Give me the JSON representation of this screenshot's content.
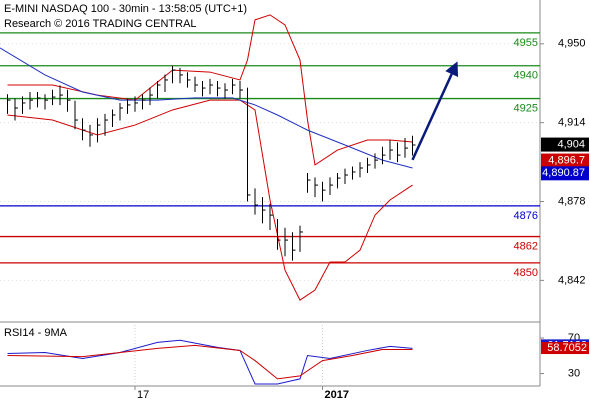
{
  "chart_data": [
    {
      "type": "ohlc",
      "title": "E-MINI NASDAQ 100 - 30min - 13:58:05 (UTC+1)",
      "subtitle": "Research © 2016 TRADING CENTRAL",
      "x": [
        0,
        1,
        2,
        3,
        4,
        5,
        6,
        7,
        8,
        9,
        10,
        11,
        12,
        13,
        14,
        15,
        16,
        17,
        18,
        19,
        20,
        21,
        22,
        23,
        24,
        25,
        26,
        27,
        28,
        29,
        30,
        31,
        32,
        33,
        34,
        35,
        36,
        37,
        38,
        39,
        40,
        41,
        42,
        43,
        44,
        45,
        46,
        47,
        48,
        49,
        50,
        51,
        52,
        53,
        54
      ],
      "high": [
        4927,
        4925,
        4926,
        4928,
        4928,
        4927,
        4929,
        4931,
        4929,
        4924,
        4916,
        4913,
        4916,
        4918,
        4920,
        4923,
        4925,
        4926,
        4927,
        4930,
        4933,
        4936,
        4940,
        4939,
        4937,
        4935,
        4933,
        4934,
        4933,
        4932,
        4934,
        4933,
        4930,
        4884,
        4880,
        4877,
        4870,
        4866,
        4864,
        4867,
        4891,
        4889,
        4887,
        4889,
        4891,
        4893,
        4894,
        4896,
        4898,
        4900,
        4903,
        4906,
        4905,
        4907,
        4908
      ],
      "low": [
        4918,
        4915,
        4918,
        4920,
        4921,
        4920,
        4922,
        4922,
        4919,
        4911,
        4906,
        4903,
        4905,
        4908,
        4912,
        4915,
        4918,
        4919,
        4920,
        4922,
        4925,
        4928,
        4932,
        4932,
        4930,
        4928,
        4926,
        4927,
        4926,
        4925,
        4927,
        4925,
        4878,
        4872,
        4868,
        4865,
        4856,
        4853,
        4851,
        4855,
        4882,
        4880,
        4878,
        4881,
        4884,
        4886,
        4888,
        4889,
        4891,
        4893,
        4895,
        4897,
        4896,
        4898,
        4899
      ],
      "close": [
        4924.3,
        4920.7,
        4923.0,
        4924.3,
        4925.3,
        4924.3,
        4925.7,
        4926.6,
        4924.3,
        4915.2,
        4910.6,
        4908.4,
        4912.9,
        4915.2,
        4917.5,
        4920.7,
        4922.1,
        4923.0,
        4924.3,
        4926.6,
        4931.2,
        4933.5,
        4938.0,
        4935.8,
        4933.5,
        4931.2,
        4929.8,
        4931.2,
        4929.8,
        4928.9,
        4931.2,
        4928.9,
        4881.0,
        4876.4,
        4874.1,
        4871.8,
        4860.4,
        4860.4,
        4855.8,
        4864.1,
        4887.8,
        4885.5,
        4883.2,
        4885.5,
        4888.7,
        4890.1,
        4891.5,
        4893.3,
        4894.7,
        4896.9,
        4899.2,
        4901.5,
        4899.2,
        4902.4,
        4903.8
      ],
      "bar_color": "#000000",
      "overlays": [
        {
          "color": "#d00000",
          "x": [
            0,
            6,
            12,
            17,
            22,
            27,
            31,
            32,
            33,
            35,
            37,
            39,
            40,
            41,
            44,
            48,
            51,
            54
          ],
          "values": [
            4931.2,
            4931.2,
            4926.6,
            4924.3,
            4938.0,
            4937.1,
            4933.5,
            4942.6,
            4960.9,
            4963.2,
            4958.6,
            4942.6,
            4915.2,
            4894.7,
            4901.5,
            4906.1,
            4906.1,
            4905.2
          ]
        },
        {
          "color": "#d00000",
          "x": [
            0,
            6,
            12,
            17,
            22,
            27,
            31,
            33,
            35,
            37,
            39,
            41,
            43,
            45,
            47,
            49,
            51,
            54
          ],
          "values": [
            4917.5,
            4915.2,
            4908.4,
            4912.9,
            4919.8,
            4924.3,
            4924.3,
            4919.8,
            4878.7,
            4846.7,
            4833.0,
            4837.6,
            4850.4,
            4850.4,
            4855.8,
            4871.8,
            4878.7,
            4885.5
          ]
        },
        {
          "color": "#2030c0",
          "x": [
            -1,
            5,
            10,
            15,
            20,
            25,
            30,
            33,
            36,
            40,
            45,
            50,
            54
          ],
          "values": [
            4948.1,
            4935.8,
            4928.0,
            4924.3,
            4924.3,
            4925.3,
            4925.3,
            4922.1,
            4917.5,
            4910.6,
            4903.8,
            4896.9,
            4893.3
          ]
        }
      ],
      "levels": [
        {
          "value": 4955,
          "color": "#1a8a1a"
        },
        {
          "value": 4940,
          "color": "#1a8a1a"
        },
        {
          "value": 4925,
          "color": "#1a8a1a"
        },
        {
          "value": 4876,
          "color": "#0000cc"
        },
        {
          "value": 4862,
          "color": "#cc0000"
        },
        {
          "value": 4850,
          "color": "#cc0000"
        }
      ],
      "forecast": {
        "color": "#0a1a7a",
        "x": [
          54,
          60
        ],
        "values": [
          4897,
          4942
        ]
      },
      "markers": [
        {
          "value": 4904,
          "label": "4,904",
          "color": "#000000"
        },
        {
          "value": 4896.7,
          "label": "4,896.7",
          "color": "#cc0000"
        },
        {
          "value": 4890.87,
          "label": "4,890.87",
          "color": "#0000cc"
        }
      ],
      "xlim": [
        -1,
        71
      ],
      "ylim": [
        4823,
        4970
      ],
      "yticks": [
        {
          "value": 4950,
          "label": "4,950"
        },
        {
          "value": 4914,
          "label": "4,914"
        },
        {
          "value": 4878,
          "label": "4,878"
        },
        {
          "value": 4842,
          "label": "4,842"
        }
      ],
      "xticks": [
        17,
        {
          "value": 42,
          "label": "2017"
        }
      ]
    },
    {
      "type": "line",
      "title": "RSI14 - 9MA",
      "series": [
        {
          "color": "#1a1acd",
          "x": [
            0,
            5,
            10,
            15,
            20,
            23,
            28,
            31,
            33,
            36,
            39,
            40,
            43,
            48,
            51,
            54
          ],
          "values": [
            52.6,
            53.7,
            46.9,
            53.7,
            65.1,
            67.4,
            59.4,
            56.0,
            18.3,
            18.3,
            24.0,
            50.3,
            46.9,
            56.0,
            60.6,
            58.3
          ]
        },
        {
          "color": "#cc0000",
          "x": [
            0,
            10,
            20,
            25,
            31,
            33,
            36,
            39,
            42,
            46,
            50,
            54
          ],
          "values": [
            50.3,
            49.1,
            58.3,
            61.7,
            56.0,
            44.6,
            24.0,
            27.4,
            44.6,
            50.3,
            57.1,
            57.1
          ]
        }
      ],
      "markers": [
        {
          "value": 61.7122,
          "color": "#1a1acd"
        },
        {
          "value": 58.7052,
          "color": "#cc0000"
        }
      ],
      "ylim": [
        16,
        88
      ],
      "yticks": [
        70,
        30
      ]
    }
  ]
}
